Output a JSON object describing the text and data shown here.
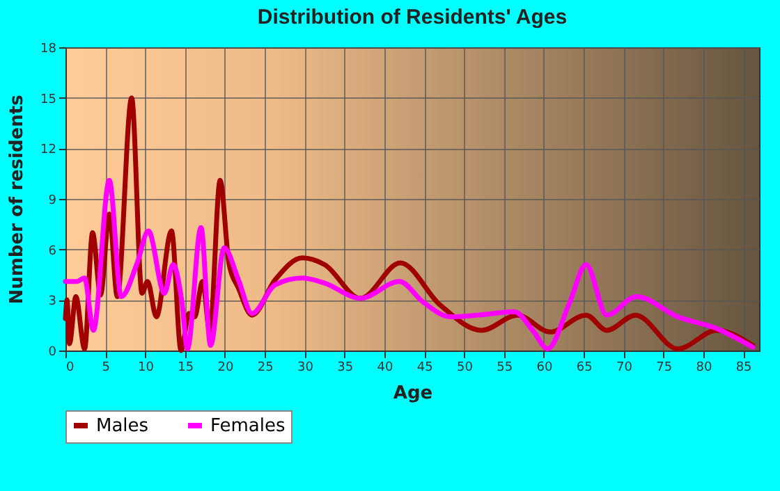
{
  "chart_data": {
    "type": "line",
    "title": "Distribution of Residents' Ages",
    "xlabel": "Age",
    "ylabel": "Number of residents",
    "xlim": [
      0,
      87
    ],
    "xticks": [
      0,
      5,
      10,
      15,
      20,
      25,
      30,
      35,
      40,
      45,
      50,
      55,
      60,
      65,
      70,
      75,
      80,
      85
    ],
    "ylim": [
      0,
      18
    ],
    "yticks": [
      0,
      3,
      6,
      9,
      12,
      15,
      18
    ],
    "grid": true,
    "legend": "bottom",
    "series": [
      {
        "name": "Males",
        "color": "#a00000",
        "x": [
          0,
          0.2,
          0.5,
          1.3,
          2.4,
          3.4,
          4.4,
          5.5,
          6.5,
          8.3,
          9.6,
          10.3,
          11.4,
          13.3,
          14.5,
          15.5,
          16.2,
          17.2,
          18.1,
          19.4,
          20.5,
          21.7,
          23.4,
          26.3,
          29.7,
          32.5,
          37,
          42,
          47,
          52.2,
          56.7,
          60.8,
          65.3,
          67.9,
          71.5,
          76.8,
          81.7,
          86.2
        ],
        "values": [
          1.9,
          3.0,
          0.4,
          3.2,
          0.1,
          7.0,
          3.3,
          8.1,
          3.2,
          15.0,
          3.4,
          4.1,
          2.0,
          7.1,
          0,
          2.2,
          2.0,
          4.1,
          1.1,
          10.1,
          5.2,
          3.7,
          2.1,
          4.2,
          5.5,
          5.1,
          3.1,
          5.2,
          2.7,
          1.2,
          2.1,
          1.1,
          2.1,
          1.2,
          2.1,
          0.1,
          1.2,
          0.3
        ]
      },
      {
        "name": "Females",
        "color": "#ff00ff",
        "x": [
          0,
          1.4,
          2.4,
          3.5,
          5.5,
          7.0,
          9.0,
          10.4,
          12.4,
          13.5,
          14.6,
          15.3,
          17.0,
          18.2,
          19.9,
          21.7,
          23.4,
          26.3,
          29.7,
          32.5,
          37,
          41.9,
          44.8,
          48.3,
          51.7,
          56.3,
          58.6,
          60.5,
          63.2,
          65.3,
          67.9,
          71.6,
          76.8,
          81.7,
          86.2
        ],
        "values": [
          4.1,
          4.1,
          4.3,
          1.2,
          10.1,
          3.2,
          5.2,
          7.1,
          3.4,
          5.1,
          2.9,
          0.1,
          7.3,
          0.3,
          6.1,
          4.2,
          2.2,
          3.9,
          4.3,
          4.0,
          3.1,
          4.1,
          2.9,
          2.0,
          2.1,
          2.3,
          1.2,
          0.1,
          2.8,
          5.1,
          2.1,
          3.2,
          2.0,
          1.3,
          0.2
        ]
      }
    ]
  }
}
